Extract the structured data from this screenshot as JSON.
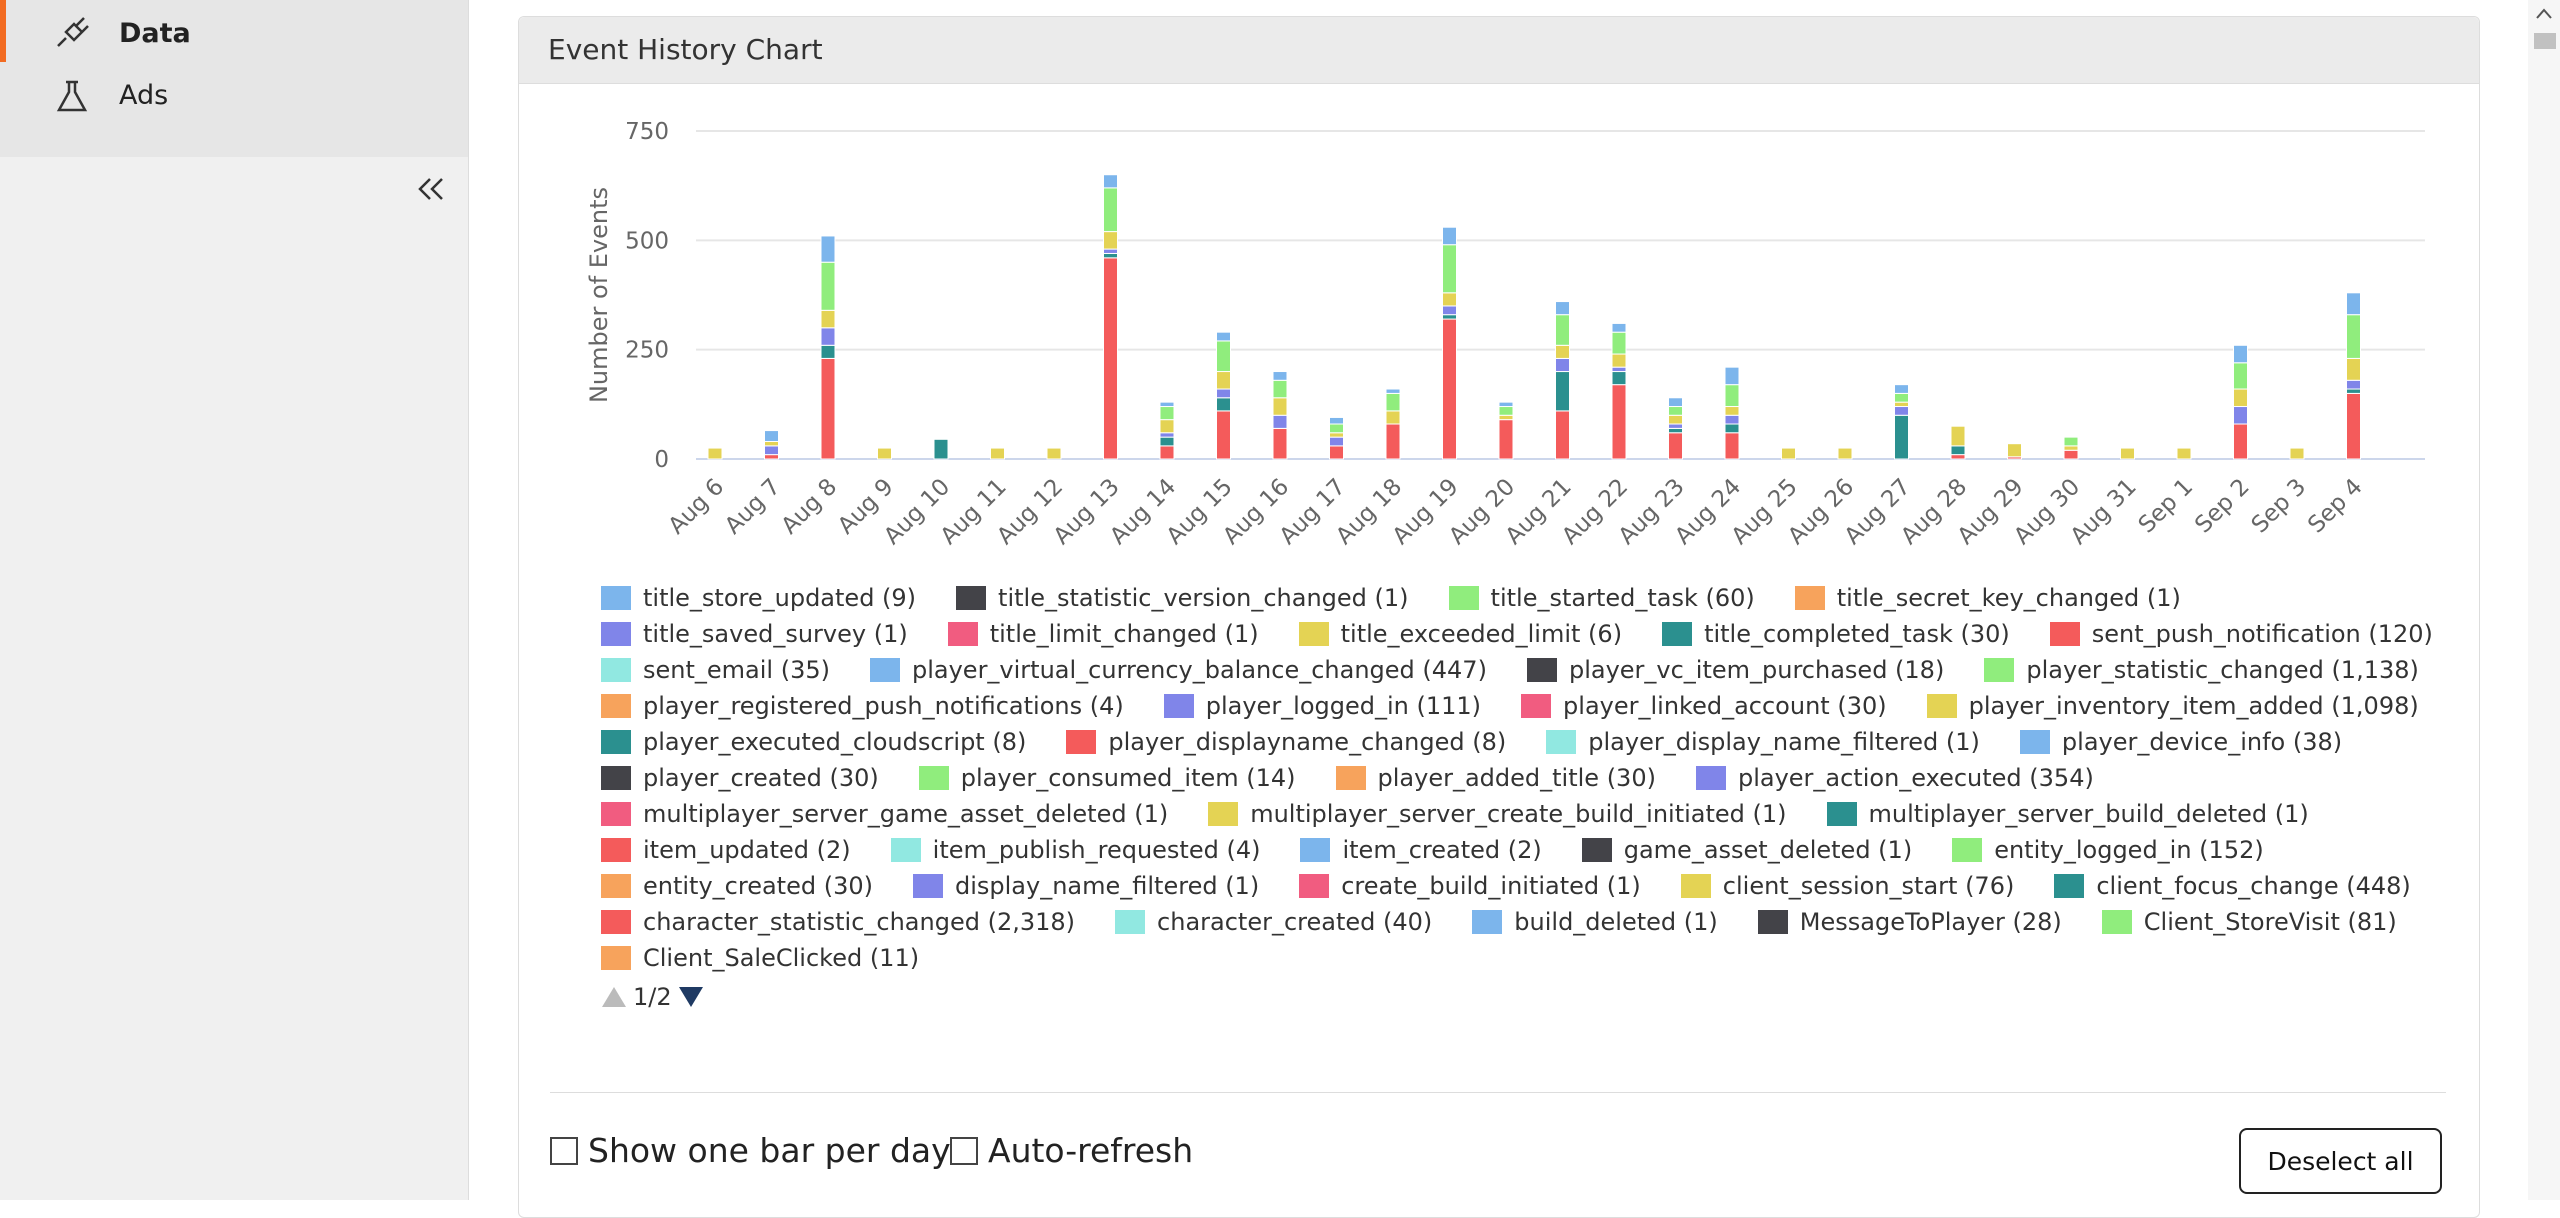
{
  "nav": {
    "items": [
      "Data",
      "Ads"
    ]
  },
  "card": {
    "title": "Event History Chart"
  },
  "chart_data": {
    "type": "bar",
    "stacked": true,
    "y_label": "Number of Events",
    "ylim": [
      0,
      750
    ],
    "yticks": [
      0,
      250,
      500,
      750
    ],
    "grid": true,
    "categories": [
      "Aug 6",
      "Aug 7",
      "Aug 8",
      "Aug 9",
      "Aug 10",
      "Aug 11",
      "Aug 12",
      "Aug 13",
      "Aug 14",
      "Aug 15",
      "Aug 16",
      "Aug 17",
      "Aug 18",
      "Aug 19",
      "Aug 20",
      "Aug 21",
      "Aug 22",
      "Aug 23",
      "Aug 24",
      "Aug 25",
      "Aug 26",
      "Aug 27",
      "Aug 28",
      "Aug 29",
      "Aug 30",
      "Aug 31",
      "Sep 1",
      "Sep 2",
      "Sep 3",
      "Sep 4"
    ],
    "series": [
      {
        "color": "#f45b5b",
        "values": [
          0,
          10,
          230,
          0,
          0,
          0,
          0,
          460,
          30,
          110,
          70,
          30,
          80,
          320,
          90,
          110,
          170,
          60,
          60,
          0,
          0,
          0,
          10,
          5,
          20,
          0,
          0,
          80,
          0,
          150
        ]
      },
      {
        "color": "#2b908f",
        "values": [
          0,
          0,
          30,
          0,
          45,
          0,
          0,
          10,
          20,
          30,
          0,
          0,
          0,
          10,
          0,
          90,
          30,
          10,
          20,
          0,
          0,
          100,
          20,
          0,
          0,
          0,
          0,
          0,
          0,
          10
        ]
      },
      {
        "color": "#8085e9",
        "values": [
          0,
          20,
          40,
          0,
          0,
          0,
          0,
          10,
          10,
          20,
          30,
          20,
          0,
          20,
          0,
          30,
          10,
          10,
          20,
          0,
          0,
          20,
          0,
          0,
          0,
          0,
          0,
          40,
          0,
          20
        ]
      },
      {
        "color": "#e4d354",
        "values": [
          25,
          10,
          40,
          25,
          0,
          25,
          25,
          40,
          30,
          40,
          40,
          10,
          30,
          30,
          10,
          30,
          30,
          20,
          20,
          25,
          25,
          10,
          45,
          30,
          10,
          25,
          25,
          40,
          25,
          50
        ]
      },
      {
        "color": "#90ed7d",
        "values": [
          0,
          0,
          110,
          0,
          0,
          0,
          0,
          100,
          30,
          70,
          40,
          20,
          40,
          110,
          20,
          70,
          50,
          20,
          50,
          0,
          0,
          20,
          0,
          0,
          20,
          0,
          0,
          60,
          0,
          100
        ]
      },
      {
        "color": "#7cb5ec",
        "values": [
          0,
          25,
          60,
          0,
          0,
          0,
          0,
          30,
          10,
          20,
          20,
          15,
          10,
          40,
          10,
          30,
          20,
          20,
          40,
          0,
          0,
          20,
          0,
          0,
          0,
          0,
          0,
          40,
          0,
          50
        ]
      }
    ],
    "legend_items": [
      {
        "label": "title_store_updated (9)",
        "color": "#7cb5ec"
      },
      {
        "label": "title_statistic_version_changed (1)",
        "color": "#434348"
      },
      {
        "label": "title_started_task (60)",
        "color": "#90ed7d"
      },
      {
        "label": "title_secret_key_changed (1)",
        "color": "#f7a35c"
      },
      {
        "label": "title_saved_survey (1)",
        "color": "#8085e9"
      },
      {
        "label": "title_limit_changed (1)",
        "color": "#f15c80"
      },
      {
        "label": "title_exceeded_limit (6)",
        "color": "#e4d354"
      },
      {
        "label": "title_completed_task (30)",
        "color": "#2b908f"
      },
      {
        "label": "sent_push_notification (120)",
        "color": "#f45b5b"
      },
      {
        "label": "sent_email (35)",
        "color": "#91e8e1"
      },
      {
        "label": "player_virtual_currency_balance_changed (447)",
        "color": "#7cb5ec"
      },
      {
        "label": "player_vc_item_purchased (18)",
        "color": "#434348"
      },
      {
        "label": "player_statistic_changed (1,138)",
        "color": "#90ed7d"
      },
      {
        "label": "player_registered_push_notifications (4)",
        "color": "#f7a35c"
      },
      {
        "label": "player_logged_in (111)",
        "color": "#8085e9"
      },
      {
        "label": "player_linked_account (30)",
        "color": "#f15c80"
      },
      {
        "label": "player_inventory_item_added (1,098)",
        "color": "#e4d354"
      },
      {
        "label": "player_executed_cloudscript (8)",
        "color": "#2b908f"
      },
      {
        "label": "player_displayname_changed (8)",
        "color": "#f45b5b"
      },
      {
        "label": "player_display_name_filtered (1)",
        "color": "#91e8e1"
      },
      {
        "label": "player_device_info (38)",
        "color": "#7cb5ec"
      },
      {
        "label": "player_created (30)",
        "color": "#434348"
      },
      {
        "label": "player_consumed_item (14)",
        "color": "#90ed7d"
      },
      {
        "label": "player_added_title (30)",
        "color": "#f7a35c"
      },
      {
        "label": "player_action_executed (354)",
        "color": "#8085e9"
      },
      {
        "label": "multiplayer_server_game_asset_deleted (1)",
        "color": "#f15c80"
      },
      {
        "label": "multiplayer_server_create_build_initiated (1)",
        "color": "#e4d354"
      },
      {
        "label": "multiplayer_server_build_deleted (1)",
        "color": "#2b908f"
      },
      {
        "label": "item_updated (2)",
        "color": "#f45b5b"
      },
      {
        "label": "item_publish_requested (4)",
        "color": "#91e8e1"
      },
      {
        "label": "item_created (2)",
        "color": "#7cb5ec"
      },
      {
        "label": "game_asset_deleted (1)",
        "color": "#434348"
      },
      {
        "label": "entity_logged_in (152)",
        "color": "#90ed7d"
      },
      {
        "label": "entity_created (30)",
        "color": "#f7a35c"
      },
      {
        "label": "display_name_filtered (1)",
        "color": "#8085e9"
      },
      {
        "label": "create_build_initiated (1)",
        "color": "#f15c80"
      },
      {
        "label": "client_session_start (76)",
        "color": "#e4d354"
      },
      {
        "label": "client_focus_change (448)",
        "color": "#2b908f"
      },
      {
        "label": "character_statistic_changed (2,318)",
        "color": "#f45b5b"
      },
      {
        "label": "character_created (40)",
        "color": "#91e8e1"
      },
      {
        "label": "build_deleted (1)",
        "color": "#7cb5ec"
      },
      {
        "label": "MessageToPlayer (28)",
        "color": "#434348"
      },
      {
        "label": "Client_StoreVisit (81)",
        "color": "#90ed7d"
      },
      {
        "label": "Client_SaleClicked (11)",
        "color": "#f7a35c"
      }
    ],
    "legend_page": "1/2"
  },
  "controls": {
    "checkboxes": [
      "Show one bar per day",
      "Auto-refresh"
    ],
    "button": "Deselect all"
  }
}
